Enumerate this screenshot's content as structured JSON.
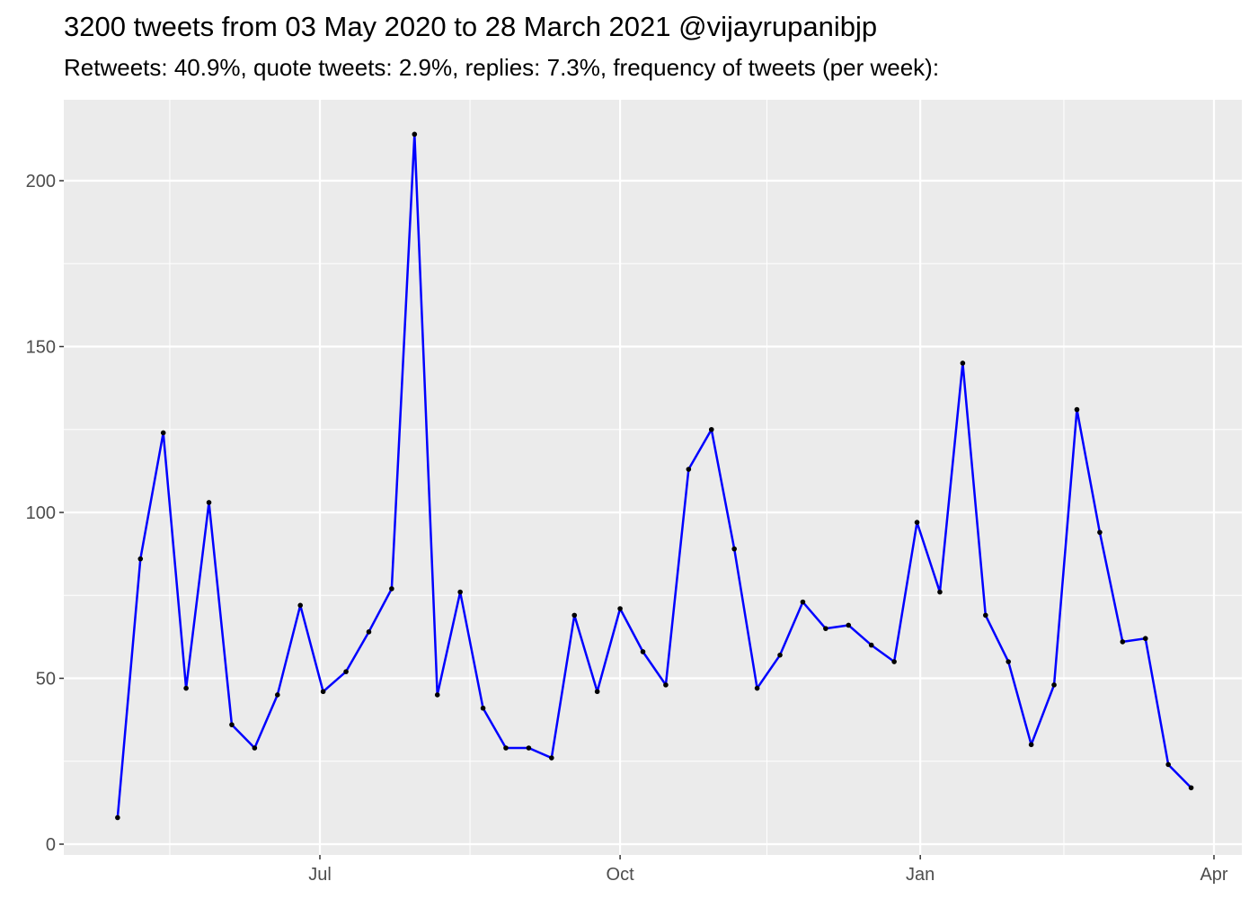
{
  "chart_data": {
    "type": "line",
    "title": "3200 tweets from 03 May 2020 to 28 March 2021 @vijayrupanibjp",
    "subtitle": "Retweets: 40.9%, quote tweets: 2.9%, replies: 7.3%, frequency of tweets (per week):",
    "xlabel": "",
    "ylabel": "",
    "ylim": [
      0,
      220
    ],
    "xlim": [
      "2020-04-21",
      "2021-04-05"
    ],
    "grid": true,
    "y_ticks": [
      0,
      50,
      100,
      150,
      200
    ],
    "x_ticks": [
      {
        "date": "2020-07-01",
        "label": "Jul"
      },
      {
        "date": "2020-10-01",
        "label": "Oct"
      },
      {
        "date": "2021-01-01",
        "label": "Jan"
      },
      {
        "date": "2021-04-01",
        "label": "Apr"
      }
    ],
    "line_color": "#0000FF",
    "point_color": "#000000",
    "background": "#EBEBEB",
    "x": [
      "2020-04-30",
      "2020-05-07",
      "2020-05-14",
      "2020-05-21",
      "2020-05-28",
      "2020-06-04",
      "2020-06-11",
      "2020-06-18",
      "2020-06-25",
      "2020-07-02",
      "2020-07-09",
      "2020-07-16",
      "2020-07-23",
      "2020-07-30",
      "2020-08-06",
      "2020-08-13",
      "2020-08-20",
      "2020-08-27",
      "2020-09-03",
      "2020-09-10",
      "2020-09-17",
      "2020-09-24",
      "2020-10-01",
      "2020-10-08",
      "2020-10-15",
      "2020-10-22",
      "2020-10-29",
      "2020-11-05",
      "2020-11-12",
      "2020-11-19",
      "2020-11-26",
      "2020-12-03",
      "2020-12-10",
      "2020-12-17",
      "2020-12-24",
      "2020-12-31",
      "2021-01-07",
      "2021-01-14",
      "2021-01-21",
      "2021-01-28",
      "2021-02-04",
      "2021-02-11",
      "2021-02-18",
      "2021-02-25",
      "2021-03-04",
      "2021-03-11",
      "2021-03-18",
      "2021-03-25"
    ],
    "values": [
      8,
      86,
      124,
      47,
      103,
      36,
      29,
      45,
      72,
      46,
      52,
      64,
      77,
      214,
      45,
      76,
      41,
      29,
      29,
      26,
      69,
      46,
      71,
      58,
      48,
      113,
      125,
      89,
      47,
      57,
      73,
      65,
      66,
      60,
      55,
      97,
      76,
      145,
      69,
      55,
      30,
      48,
      131,
      94,
      61,
      62,
      24,
      17
    ]
  }
}
